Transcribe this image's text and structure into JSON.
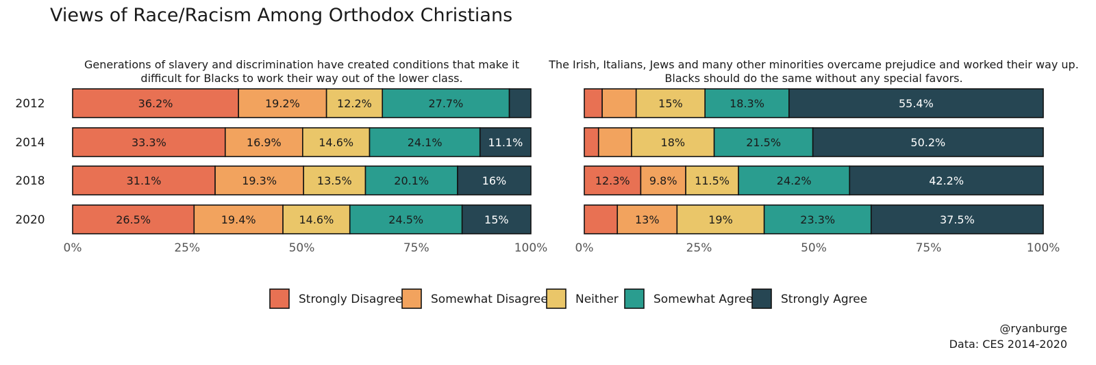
{
  "title": "Views of Race/Racism Among Orthodox Christians",
  "caption": {
    "handle": "@ryanburge",
    "source": "Data: CES 2014-2020"
  },
  "colors": {
    "Strongly Disagree": "#E87153",
    "Somewhat Disagree": "#F2A35E",
    "Neither": "#EAC669",
    "Somewhat Agree": "#2A9D8F",
    "Strongly Agree": "#264653"
  },
  "legend": [
    "Strongly Disagree",
    "Somewhat Disagree",
    "Neither",
    "Somewhat Agree",
    "Strongly Agree"
  ],
  "x_ticks": [
    "0%",
    "25%",
    "50%",
    "75%",
    "100%"
  ],
  "chart_data": [
    {
      "type": "bar",
      "orientation": "horizontal",
      "stacked": true,
      "subtitle": [
        "Generations of slavery and discrimination have created conditions that make it",
        "difficult for Blacks to work their way out of the lower class."
      ],
      "categories": [
        "2012",
        "2014",
        "2018",
        "2020"
      ],
      "xlim": [
        0,
        100
      ],
      "series": [
        {
          "name": "Strongly Disagree",
          "values": [
            36.2,
            33.3,
            31.1,
            26.5
          ],
          "labels": [
            "36.2%",
            "33.3%",
            "31.1%",
            "26.5%"
          ]
        },
        {
          "name": "Somewhat Disagree",
          "values": [
            19.2,
            16.9,
            19.3,
            19.4
          ],
          "labels": [
            "19.2%",
            "16.9%",
            "19.3%",
            "19.4%"
          ]
        },
        {
          "name": "Neither",
          "values": [
            12.2,
            14.6,
            13.5,
            14.6
          ],
          "labels": [
            "12.2%",
            "14.6%",
            "13.5%",
            "14.6%"
          ]
        },
        {
          "name": "Somewhat Agree",
          "values": [
            27.7,
            24.1,
            20.1,
            24.5
          ],
          "labels": [
            "27.7%",
            "24.1%",
            "20.1%",
            "24.5%"
          ]
        },
        {
          "name": "Strongly Agree",
          "values": [
            4.7,
            11.1,
            16.0,
            15.0
          ],
          "labels": [
            "",
            "11.1%",
            "16%",
            "15%"
          ]
        }
      ]
    },
    {
      "type": "bar",
      "orientation": "horizontal",
      "stacked": true,
      "subtitle": [
        "The Irish, Italians, Jews and many other minorities overcame prejudice and worked their way up.",
        "Blacks should do the same without any special favors."
      ],
      "categories": [
        "2012",
        "2014",
        "2018",
        "2020"
      ],
      "xlim": [
        0,
        100
      ],
      "series": [
        {
          "name": "Strongly Disagree",
          "values": [
            3.9,
            3.1,
            12.3,
            7.2
          ],
          "labels": [
            "",
            "",
            "12.3%",
            ""
          ]
        },
        {
          "name": "Somewhat Disagree",
          "values": [
            7.4,
            7.2,
            9.8,
            13.0
          ],
          "labels": [
            "",
            "",
            "9.8%",
            "13%"
          ]
        },
        {
          "name": "Neither",
          "values": [
            15.0,
            18.0,
            11.5,
            19.0
          ],
          "labels": [
            "15%",
            "18%",
            "11.5%",
            "19%"
          ]
        },
        {
          "name": "Somewhat Agree",
          "values": [
            18.3,
            21.5,
            24.2,
            23.3
          ],
          "labels": [
            "18.3%",
            "21.5%",
            "24.2%",
            "23.3%"
          ]
        },
        {
          "name": "Strongly Agree",
          "values": [
            55.4,
            50.2,
            42.2,
            37.5
          ],
          "labels": [
            "55.4%",
            "50.2%",
            "42.2%",
            "37.5%"
          ]
        }
      ]
    }
  ]
}
